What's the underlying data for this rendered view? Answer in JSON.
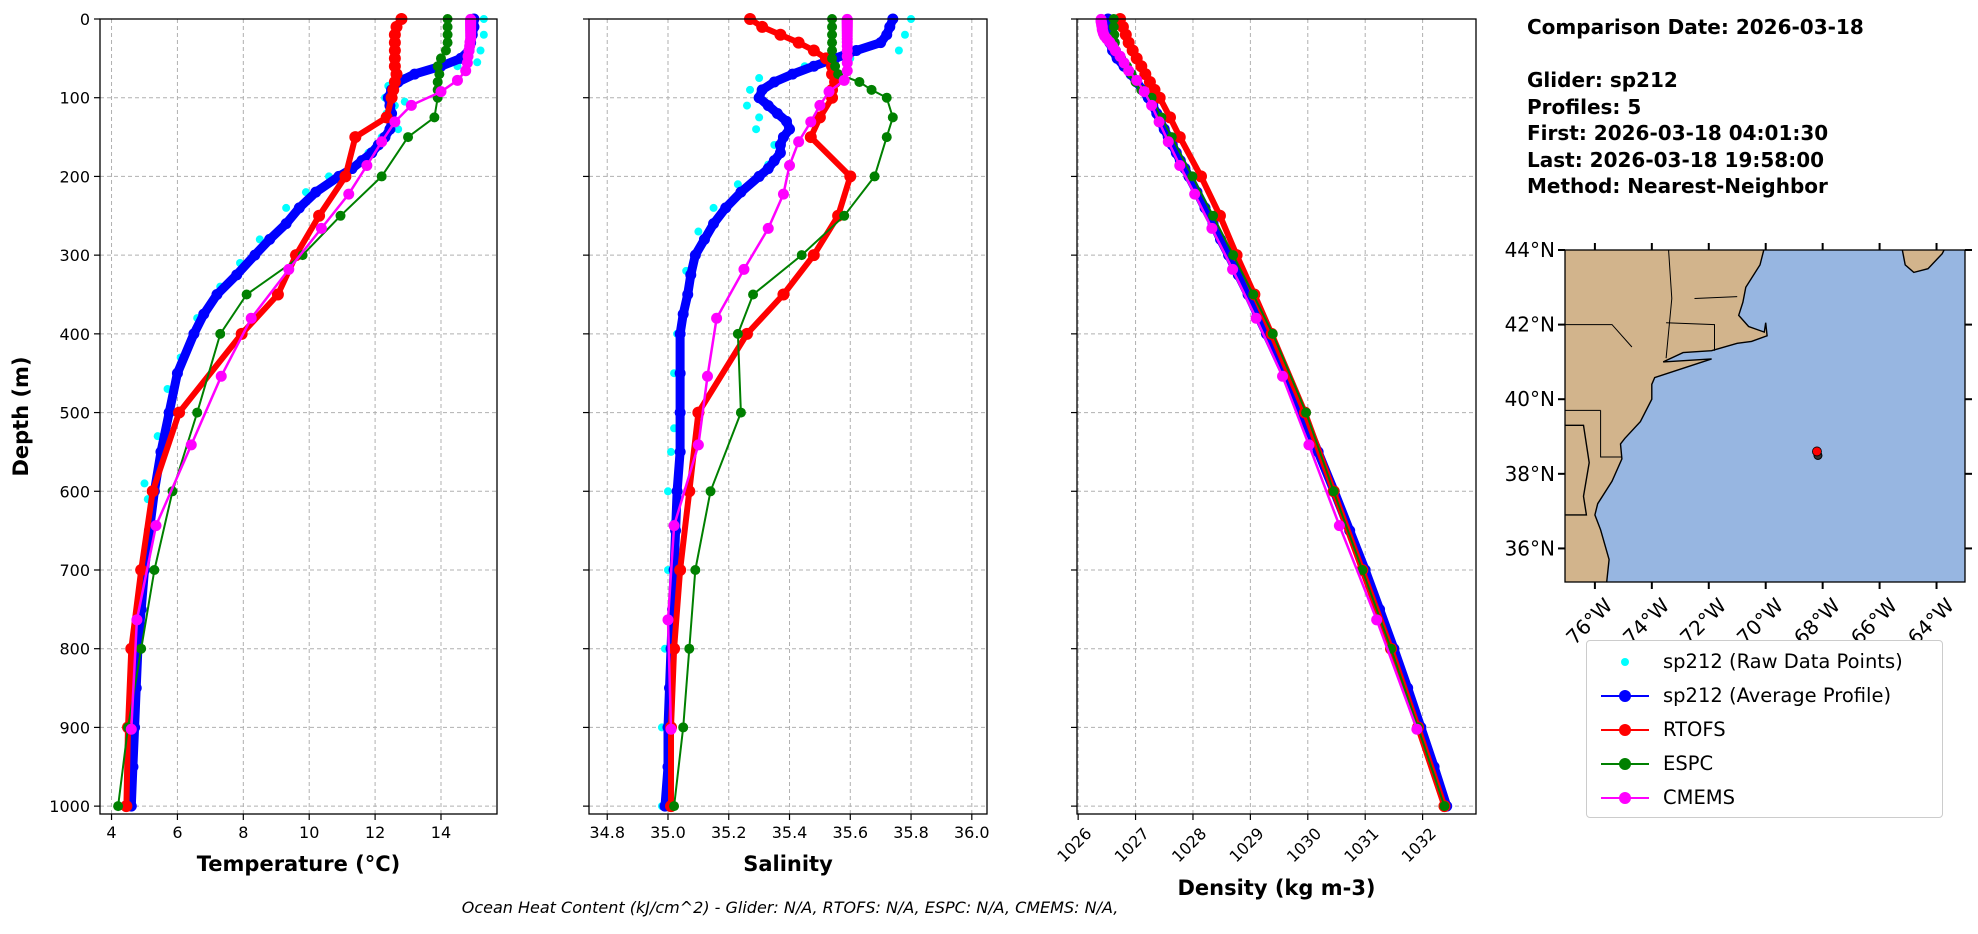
{
  "info": {
    "comparison_date": "Comparison Date: 2026-03-18",
    "glider": "Glider: sp212",
    "profiles": "Profiles: 5",
    "first": "First: 2026-03-18 04:01:30",
    "last": "Last: 2026-03-18 19:58:00",
    "method": "Method: Nearest-Neighbor"
  },
  "footer": "Ocean Heat Content (kJ/cm^2) - Glider: N/A,  RTOFS: N/A,  ESPC: N/A,  CMEMS: N/A,",
  "legend": [
    {
      "label": "sp212 (Raw Data Points)",
      "color": "#00ffff",
      "style": "dots"
    },
    {
      "label": "sp212 (Average Profile)",
      "color": "#0000ff",
      "style": "line-marker"
    },
    {
      "label": "RTOFS",
      "color": "#ff0000",
      "style": "line-marker"
    },
    {
      "label": "ESPC",
      "color": "#008000",
      "style": "line-marker"
    },
    {
      "label": "CMEMS",
      "color": "#ff00ff",
      "style": "line-marker"
    }
  ],
  "map": {
    "lat_ticks": [
      "36°N",
      "38°N",
      "40°N",
      "42°N",
      "44°N"
    ],
    "lon_ticks": [
      "76°W",
      "74°W",
      "72°W",
      "70°W",
      "68°W",
      "66°W",
      "64°W"
    ],
    "lat_range": [
      35.1,
      44
    ],
    "lon_range": [
      -77.05,
      -63.0
    ],
    "glider_position": {
      "lat": 38.6,
      "lon": -68.2
    },
    "land_color": "#d2b48c",
    "ocean_color": "#97b6e1",
    "marker_color": "#ff0000"
  },
  "depths": {
    "glider": [
      0,
      10,
      20,
      30,
      40,
      50,
      60,
      70,
      80,
      90,
      100,
      110,
      120,
      130,
      140,
      150,
      160,
      170,
      180,
      190,
      200,
      220,
      240,
      260,
      280,
      300,
      325,
      350,
      375,
      400,
      450,
      500,
      550,
      600,
      650,
      700,
      750,
      800,
      850,
      900,
      950,
      1000
    ],
    "rtofs": [
      0,
      10,
      20,
      30,
      40,
      50,
      60,
      70,
      80,
      90,
      100,
      125,
      150,
      200,
      250,
      300,
      350,
      400,
      500,
      600,
      700,
      800,
      900,
      1000
    ],
    "espc": [
      0,
      10,
      20,
      30,
      40,
      50,
      60,
      70,
      80,
      90,
      100,
      125,
      150,
      200,
      250,
      300,
      350,
      400,
      500,
      600,
      700,
      800,
      900,
      1000
    ],
    "cmems": [
      0.5,
      1.5,
      2.6,
      3.8,
      5.1,
      6.4,
      7.9,
      9.6,
      11.4,
      13.5,
      15.8,
      18.5,
      21.6,
      25.2,
      29.4,
      34.4,
      40.3,
      47.4,
      55.8,
      65.8,
      77.9,
      92.3,
      109.7,
      130.7,
      155.9,
      186.1,
      222.5,
      266.0,
      318.1,
      380.2,
      453.9,
      541.1,
      643.6,
      763.3,
      902.3
    ]
  },
  "chart_data": [
    {
      "type": "line",
      "xlabel": "Temperature (°C)",
      "ylabel": "Depth (m)",
      "xlim": [
        3.65,
        15.7
      ],
      "ylim": [
        1010,
        0
      ],
      "grid": true,
      "xticks": [
        "4",
        "6",
        "8",
        "10",
        "12",
        "14"
      ],
      "xtick_values": [
        4,
        6,
        8,
        10,
        12,
        14
      ],
      "yticks": [
        "0",
        "100",
        "200",
        "300",
        "400",
        "500",
        "600",
        "700",
        "800",
        "900",
        "1000"
      ],
      "ytick_values": [
        0,
        100,
        200,
        300,
        400,
        500,
        600,
        700,
        800,
        900,
        1000
      ],
      "raw": {
        "color": "#00ffff",
        "points": [
          [
            15.3,
            0
          ],
          [
            15.3,
            20
          ],
          [
            15.2,
            40
          ],
          [
            15.1,
            55
          ],
          [
            14.5,
            60
          ],
          [
            13.6,
            65
          ],
          [
            12.9,
            75
          ],
          [
            12.4,
            85
          ],
          [
            12.3,
            100
          ],
          [
            12.35,
            120
          ],
          [
            12.6,
            110
          ],
          [
            12.9,
            105
          ],
          [
            12.7,
            140
          ],
          [
            12.2,
            150
          ],
          [
            11.8,
            170
          ],
          [
            10.6,
            200
          ],
          [
            9.9,
            220
          ],
          [
            9.3,
            240
          ],
          [
            8.5,
            280
          ],
          [
            7.9,
            310
          ],
          [
            7.3,
            340
          ],
          [
            6.6,
            380
          ],
          [
            6.1,
            430
          ],
          [
            5.7,
            470
          ],
          [
            5.4,
            530
          ],
          [
            5.0,
            590
          ],
          [
            5.1,
            610
          ],
          [
            4.9,
            700
          ],
          [
            4.8,
            800
          ],
          [
            4.7,
            900
          ],
          [
            4.6,
            1000
          ]
        ]
      },
      "series": [
        {
          "key": "glider",
          "color": "#0000ff",
          "values": [
            15.0,
            15.0,
            14.95,
            14.9,
            14.85,
            14.6,
            14.0,
            13.2,
            12.7,
            12.5,
            12.4,
            12.45,
            12.5,
            12.5,
            12.45,
            12.3,
            12.1,
            11.9,
            11.6,
            11.3,
            10.9,
            10.2,
            9.7,
            9.3,
            8.8,
            8.35,
            7.8,
            7.2,
            6.8,
            6.5,
            6.0,
            5.75,
            5.5,
            5.3,
            5.15,
            5.0,
            4.9,
            4.8,
            4.75,
            4.7,
            4.65,
            4.6
          ]
        },
        {
          "key": "rtofs",
          "color": "#ff0000",
          "values": [
            12.8,
            12.65,
            12.6,
            12.6,
            12.6,
            12.6,
            12.6,
            12.65,
            12.6,
            12.55,
            12.5,
            12.35,
            11.4,
            11.1,
            10.3,
            9.6,
            9.05,
            7.95,
            6.05,
            5.25,
            4.9,
            4.6,
            4.5,
            4.45
          ]
        },
        {
          "key": "espc",
          "color": "#008000",
          "values": [
            14.2,
            14.2,
            14.2,
            14.2,
            14.15,
            14.0,
            13.9,
            13.95,
            13.9,
            13.9,
            13.9,
            13.8,
            13.0,
            12.2,
            10.95,
            9.8,
            8.1,
            7.3,
            6.6,
            5.85,
            5.3,
            4.9,
            4.5,
            4.2
          ]
        },
        {
          "key": "cmems",
          "color": "#ff00ff",
          "values": [
            14.9,
            14.9,
            14.9,
            14.9,
            14.9,
            14.9,
            14.9,
            14.9,
            14.9,
            14.9,
            14.9,
            14.9,
            14.9,
            14.9,
            14.88,
            14.87,
            14.85,
            14.82,
            14.8,
            14.75,
            14.5,
            14.0,
            13.1,
            12.6,
            12.2,
            11.75,
            11.2,
            10.37,
            9.38,
            8.24,
            7.33,
            6.42,
            5.35,
            4.77,
            4.6
          ]
        }
      ]
    },
    {
      "type": "line",
      "xlabel": "Salinity",
      "ylabel": "",
      "xlim": [
        34.74,
        36.05
      ],
      "ylim": [
        1010,
        0
      ],
      "grid": true,
      "xticks": [
        "34.8",
        "35.0",
        "35.2",
        "35.4",
        "35.6",
        "35.8",
        "36.0"
      ],
      "xtick_values": [
        34.8,
        35.0,
        35.2,
        35.4,
        35.6,
        35.8,
        36.0
      ],
      "ytick_values": [
        0,
        100,
        200,
        300,
        400,
        500,
        600,
        700,
        800,
        900,
        1000
      ],
      "raw": {
        "color": "#00ffff",
        "points": [
          [
            35.8,
            0
          ],
          [
            35.78,
            20
          ],
          [
            35.76,
            40
          ],
          [
            35.6,
            50
          ],
          [
            35.45,
            60
          ],
          [
            35.3,
            75
          ],
          [
            35.27,
            90
          ],
          [
            35.26,
            110
          ],
          [
            35.3,
            125
          ],
          [
            35.29,
            140
          ],
          [
            35.35,
            160
          ],
          [
            35.33,
            185
          ],
          [
            35.23,
            210
          ],
          [
            35.15,
            240
          ],
          [
            35.1,
            270
          ],
          [
            35.06,
            320
          ],
          [
            35.03,
            400
          ],
          [
            35.02,
            450
          ],
          [
            35.02,
            520
          ],
          [
            35.01,
            550
          ],
          [
            35.0,
            600
          ],
          [
            35.02,
            640
          ],
          [
            35.0,
            700
          ],
          [
            34.99,
            800
          ],
          [
            34.98,
            900
          ],
          [
            34.98,
            1000
          ]
        ]
      },
      "series": [
        {
          "key": "glider",
          "color": "#0000ff",
          "values": [
            35.74,
            35.73,
            35.72,
            35.7,
            35.62,
            35.55,
            35.48,
            35.41,
            35.35,
            35.31,
            35.3,
            35.33,
            35.36,
            35.39,
            35.4,
            35.38,
            35.37,
            35.37,
            35.35,
            35.33,
            35.3,
            35.24,
            35.19,
            35.15,
            35.12,
            35.09,
            35.075,
            35.065,
            35.05,
            35.04,
            35.04,
            35.04,
            35.04,
            35.03,
            35.025,
            35.02,
            35.015,
            35.01,
            35.005,
            35.0,
            35.0,
            34.99
          ]
        },
        {
          "key": "rtofs",
          "color": "#ff0000",
          "values": [
            35.27,
            35.31,
            35.37,
            35.43,
            35.48,
            35.52,
            35.54,
            35.54,
            35.55,
            35.54,
            35.54,
            35.5,
            35.47,
            35.6,
            35.56,
            35.48,
            35.38,
            35.26,
            35.1,
            35.07,
            35.04,
            35.02,
            35.01,
            35.01
          ]
        },
        {
          "key": "espc",
          "color": "#008000",
          "values": [
            35.54,
            35.54,
            35.54,
            35.54,
            35.54,
            35.54,
            35.55,
            35.56,
            35.63,
            35.67,
            35.72,
            35.74,
            35.72,
            35.68,
            35.58,
            35.44,
            35.28,
            35.23,
            35.24,
            35.14,
            35.09,
            35.07,
            35.05,
            35.02
          ]
        },
        {
          "key": "cmems",
          "color": "#ff00ff",
          "values": [
            35.59,
            35.59,
            35.59,
            35.59,
            35.59,
            35.59,
            35.59,
            35.59,
            35.59,
            35.59,
            35.59,
            35.59,
            35.59,
            35.59,
            35.59,
            35.59,
            35.59,
            35.59,
            35.59,
            35.59,
            35.58,
            35.53,
            35.5,
            35.47,
            35.43,
            35.4,
            35.38,
            35.33,
            35.25,
            35.16,
            35.13,
            35.1,
            35.02,
            35.0,
            35.01
          ]
        }
      ]
    },
    {
      "type": "line",
      "xlabel": "Density (kg m-3)",
      "ylabel": "",
      "xlim": [
        1025.98,
        1032.93
      ],
      "ylim": [
        1010,
        0
      ],
      "grid": true,
      "xticks": [
        "1026",
        "1027",
        "1028",
        "1029",
        "1030",
        "1031",
        "1032"
      ],
      "xtick_values": [
        1026,
        1027,
        1028,
        1029,
        1030,
        1031,
        1032
      ],
      "ytick_values": [
        0,
        100,
        200,
        300,
        400,
        500,
        600,
        700,
        800,
        900,
        1000
      ],
      "raw": {
        "color": "#00ffff",
        "points": [
          [
            1026.45,
            0
          ],
          [
            1027.2,
            100
          ],
          [
            1027.95,
            200
          ],
          [
            1028.6,
            300
          ],
          [
            1030.45,
            600
          ],
          [
            1032.4,
            1000
          ]
        ]
      },
      "series": [
        {
          "key": "glider",
          "color": "#0000ff",
          "values": [
            1026.52,
            1026.52,
            1026.53,
            1026.55,
            1026.6,
            1026.68,
            1026.8,
            1026.92,
            1027.02,
            1027.12,
            1027.22,
            1027.3,
            1027.37,
            1027.43,
            1027.5,
            1027.57,
            1027.64,
            1027.71,
            1027.78,
            1027.86,
            1027.93,
            1028.07,
            1028.21,
            1028.35,
            1028.48,
            1028.62,
            1028.79,
            1028.96,
            1029.12,
            1029.28,
            1029.6,
            1029.9,
            1030.18,
            1030.46,
            1030.73,
            1031.0,
            1031.25,
            1031.5,
            1031.74,
            1031.97,
            1032.2,
            1032.42
          ]
        },
        {
          "key": "rtofs",
          "color": "#ff0000",
          "values": [
            1026.73,
            1026.78,
            1026.83,
            1026.88,
            1026.95,
            1027.02,
            1027.1,
            1027.17,
            1027.25,
            1027.33,
            1027.42,
            1027.6,
            1027.77,
            1028.14,
            1028.47,
            1028.76,
            1029.07,
            1029.37,
            1029.95,
            1030.45,
            1030.95,
            1031.45,
            1031.92,
            1032.38
          ]
        },
        {
          "key": "espc",
          "color": "#008000",
          "values": [
            1026.62,
            1026.62,
            1026.63,
            1026.64,
            1026.66,
            1026.75,
            1026.85,
            1026.93,
            1027.0,
            1027.1,
            1027.28,
            1027.45,
            1027.63,
            1027.99,
            1028.35,
            1028.7,
            1029.05,
            1029.39,
            1029.97,
            1030.45,
            1030.95,
            1031.45,
            1031.92,
            1032.38
          ]
        },
        {
          "key": "cmems",
          "color": "#ff00ff",
          "values": [
            1026.4,
            1026.4,
            1026.4,
            1026.4,
            1026.41,
            1026.41,
            1026.41,
            1026.42,
            1026.42,
            1026.42,
            1026.43,
            1026.44,
            1026.46,
            1026.5,
            1026.55,
            1026.6,
            1026.65,
            1026.73,
            1026.8,
            1026.88,
            1027.02,
            1027.15,
            1027.28,
            1027.41,
            1027.57,
            1027.77,
            1028.03,
            1028.33,
            1028.69,
            1029.1,
            1029.56,
            1030.02,
            1030.55,
            1031.2,
            1031.9
          ]
        }
      ]
    }
  ]
}
